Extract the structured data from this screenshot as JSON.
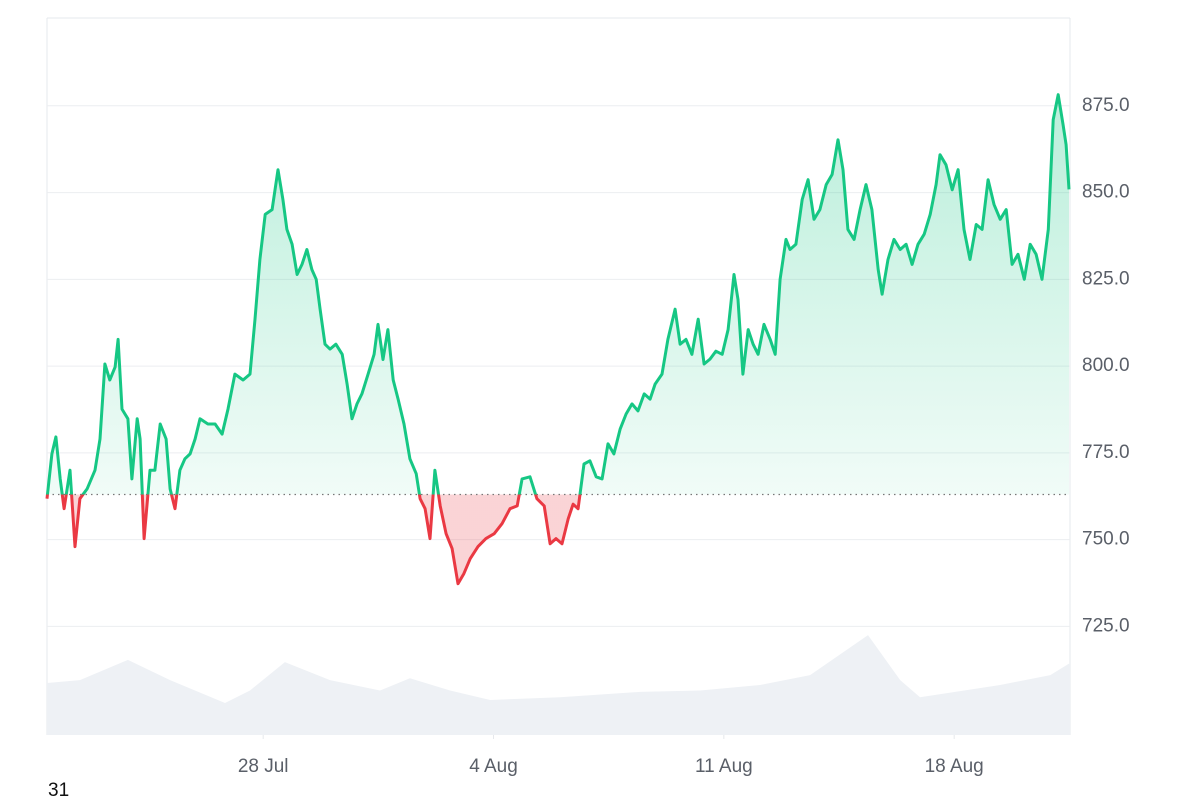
{
  "chart_data": {
    "type": "line",
    "color": "#16c784",
    "down_color": "#ea3943",
    "baseline": 763,
    "grid": true,
    "xlim": [
      21.43,
      52.52
    ],
    "ylim": [
      693.7,
      900.3
    ],
    "xticks": [
      {
        "value": 28,
        "label": "28 Jul"
      },
      {
        "value": 35,
        "label": "4 Aug"
      },
      {
        "value": 42,
        "label": "11 Aug"
      },
      {
        "value": 49,
        "label": "18 Aug"
      }
    ],
    "yticks": [
      {
        "value": 725,
        "label": "725.0"
      },
      {
        "value": 750,
        "label": "750.0"
      },
      {
        "value": 775,
        "label": "775.0"
      },
      {
        "value": 800,
        "label": "800.0"
      },
      {
        "value": 825,
        "label": "825.0"
      },
      {
        "value": 850,
        "label": "850.0"
      },
      {
        "value": 875,
        "label": "875.0"
      }
    ],
    "corner_label": "31",
    "x": [
      21.43,
      21.58,
      21.7,
      21.83,
      21.95,
      22.13,
      22.28,
      22.43,
      22.65,
      22.89,
      23.04,
      23.19,
      23.34,
      23.5,
      23.59,
      23.71,
      23.89,
      24.01,
      24.17,
      24.26,
      24.38,
      24.56,
      24.71,
      24.87,
      25.05,
      25.17,
      25.32,
      25.47,
      25.62,
      25.78,
      25.93,
      26.08,
      26.32,
      26.54,
      26.75,
      26.93,
      27.14,
      27.39,
      27.6,
      27.75,
      27.9,
      28.06,
      28.27,
      28.45,
      28.6,
      28.72,
      28.88,
      29.03,
      29.18,
      29.33,
      29.48,
      29.61,
      29.73,
      29.88,
      30.03,
      30.21,
      30.4,
      30.55,
      30.7,
      30.85,
      31.0,
      31.19,
      31.37,
      31.49,
      31.64,
      31.79,
      31.95,
      32.1,
      32.28,
      32.46,
      32.65,
      32.77,
      32.92,
      33.07,
      33.22,
      33.38,
      33.56,
      33.74,
      33.92,
      34.1,
      34.29,
      34.53,
      34.77,
      35.02,
      35.26,
      35.5,
      35.72,
      35.87,
      36.11,
      36.32,
      36.54,
      36.72,
      36.9,
      37.08,
      37.27,
      37.42,
      37.57,
      37.75,
      37.93,
      38.12,
      38.3,
      38.48,
      38.66,
      38.85,
      39.03,
      39.21,
      39.39,
      39.58,
      39.76,
      39.91,
      40.12,
      40.3,
      40.52,
      40.67,
      40.85,
      41.03,
      41.22,
      41.4,
      41.58,
      41.76,
      41.95,
      42.13,
      42.31,
      42.43,
      42.58,
      42.74,
      42.89,
      43.04,
      43.22,
      43.41,
      43.56,
      43.71,
      43.89,
      44.01,
      44.19,
      44.38,
      44.56,
      44.74,
      44.92,
      45.11,
      45.29,
      45.47,
      45.62,
      45.77,
      45.96,
      46.14,
      46.32,
      46.5,
      46.69,
      46.81,
      46.99,
      47.17,
      47.36,
      47.54,
      47.72,
      47.9,
      48.09,
      48.27,
      48.45,
      48.57,
      48.75,
      48.94,
      49.12,
      49.3,
      49.48,
      49.67,
      49.85,
      50.03,
      50.21,
      50.4,
      50.58,
      50.76,
      50.94,
      51.13,
      51.31,
      51.49,
      51.67,
      51.86,
      52.01,
      52.16,
      52.31,
      52.4,
      52.49
    ],
    "values": [
      761.8,
      774.7,
      779.6,
      767.5,
      758.9,
      770,
      748,
      761.8,
      764.6,
      770,
      779,
      800.6,
      796,
      799.7,
      807.7,
      787.6,
      784.8,
      767.5,
      784.8,
      779,
      750.3,
      770,
      770,
      783.3,
      779,
      764.6,
      758.9,
      770,
      773.3,
      774.7,
      779,
      784.8,
      783.3,
      783.3,
      780.4,
      787.6,
      797.7,
      796,
      797.7,
      813.5,
      830.7,
      843.7,
      845.1,
      856.6,
      848,
      839.4,
      835.1,
      826.4,
      829.3,
      833.6,
      827.8,
      825,
      816.4,
      806.3,
      804.9,
      806.3,
      803.4,
      794.8,
      784.8,
      789.1,
      792,
      797.7,
      803.4,
      812,
      801.9,
      810.5,
      796,
      790.5,
      783.3,
      773.3,
      769,
      761.8,
      758.9,
      750.3,
      770,
      759.7,
      751.7,
      747.4,
      737.3,
      740.2,
      744.5,
      748,
      750.3,
      751.7,
      754.6,
      758.9,
      759.7,
      767.5,
      768.1,
      761.8,
      759.7,
      748.8,
      750.3,
      748.8,
      756,
      760.2,
      758.9,
      771.8,
      772.7,
      768.1,
      767.5,
      777.6,
      774.7,
      781.9,
      786.2,
      789.1,
      787.1,
      792,
      790.5,
      794.8,
      797.7,
      807.7,
      816.4,
      806.3,
      807.7,
      803.4,
      813.5,
      800.6,
      802,
      804.3,
      803.4,
      810.5,
      826.4,
      819.2,
      797.7,
      810.5,
      806.3,
      803.4,
      812,
      807.7,
      803.4,
      825,
      836.5,
      833.6,
      835.1,
      848,
      853.7,
      842.3,
      845.1,
      852.3,
      855.2,
      865.2,
      856.6,
      839.4,
      836.5,
      845.1,
      852.3,
      845.1,
      827.8,
      820.7,
      830.7,
      836.5,
      833.6,
      835.1,
      829.3,
      835.1,
      838,
      843.7,
      852.3,
      860.9,
      858,
      850.8,
      856.6,
      839.4,
      830.7,
      840.8,
      839.4,
      853.7,
      846.6,
      842.3,
      845.1,
      829.3,
      832.2,
      825,
      835.1,
      832.2,
      825,
      839.4,
      871,
      878.2,
      869.5,
      863.8,
      850.9
    ],
    "volume": {
      "color": "#eef1f5",
      "ylim": [
        0,
        100
      ],
      "x": [
        21.43,
        22.43,
        23.89,
        25.17,
        26.84,
        27.6,
        28.66,
        30.03,
        31.55,
        32.46,
        33.68,
        34.9,
        37.02,
        39.45,
        41.28,
        43.1,
        44.62,
        46.38,
        47.36,
        47.96,
        50.4,
        51.92,
        52.52
      ],
      "values": [
        38.5,
        40.7,
        55.6,
        40.7,
        23.7,
        33,
        54,
        40.7,
        33,
        42,
        33,
        25.9,
        28,
        31.9,
        33,
        37,
        44.4,
        74,
        40.7,
        28,
        37,
        44.4,
        53.3
      ]
    }
  }
}
